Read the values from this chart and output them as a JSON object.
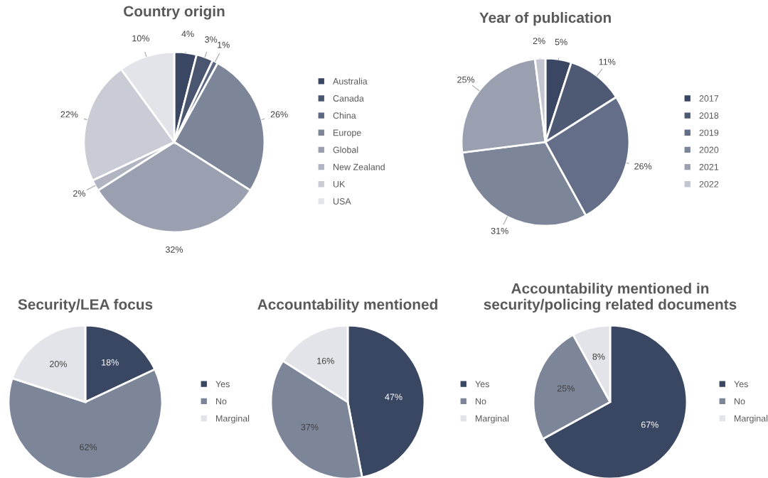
{
  "chart_data": [
    {
      "type": "pie",
      "title": "Country origin",
      "categories": [
        "Australia",
        "Canada",
        "China",
        "Europe",
        "Global",
        "New Zealand",
        "UK",
        "USA"
      ],
      "values": [
        4,
        3,
        1,
        26,
        32,
        2,
        22,
        10
      ],
      "value_labels": [
        "4%",
        "3%",
        "1%",
        "26%",
        "32%",
        "2%",
        "22%",
        "10%"
      ],
      "colors": [
        "#3a4763",
        "#4a5670",
        "#5d6882",
        "#7d8599",
        "#9aa0b0",
        "#b1b5c2",
        "#c9ccd5",
        "#e3e4e9"
      ],
      "legend": "right"
    },
    {
      "type": "pie",
      "title": "Year of publication",
      "categories": [
        "2017",
        "2018",
        "2019",
        "2020",
        "2021",
        "2022"
      ],
      "values": [
        5,
        11,
        26,
        31,
        25,
        2
      ],
      "value_labels": [
        "5%",
        "11%",
        "26%",
        "31%",
        "25%",
        "2%"
      ],
      "colors": [
        "#3a4763",
        "#4e5a74",
        "#646e88",
        "#7d8599",
        "#9aa0b0",
        "#c3c6d0"
      ],
      "legend": "right"
    },
    {
      "type": "pie",
      "title": "Security/LEA focus",
      "categories": [
        "Yes",
        "No",
        "Marginal"
      ],
      "values": [
        18,
        62,
        20
      ],
      "value_labels": [
        "18%",
        "62%",
        "20%"
      ],
      "colors": [
        "#3a4763",
        "#7d8599",
        "#e3e4e9"
      ],
      "legend": "right"
    },
    {
      "type": "pie",
      "title": "Accountability mentioned",
      "categories": [
        "Yes",
        "No",
        "Marginal"
      ],
      "values": [
        47,
        37,
        16
      ],
      "value_labels": [
        "47%",
        "37%",
        "16%"
      ],
      "colors": [
        "#3a4763",
        "#7d8599",
        "#e3e4e9"
      ],
      "legend": "right"
    },
    {
      "type": "pie",
      "title": "Accountability mentioned in\nsecurity/policing related documents",
      "categories": [
        "Yes",
        "No",
        "Marginal"
      ],
      "values": [
        67,
        25,
        8
      ],
      "value_labels": [
        "67%",
        "25%",
        "8%"
      ],
      "colors": [
        "#3a4763",
        "#7d8599",
        "#e3e4e9"
      ],
      "legend": "right"
    }
  ]
}
